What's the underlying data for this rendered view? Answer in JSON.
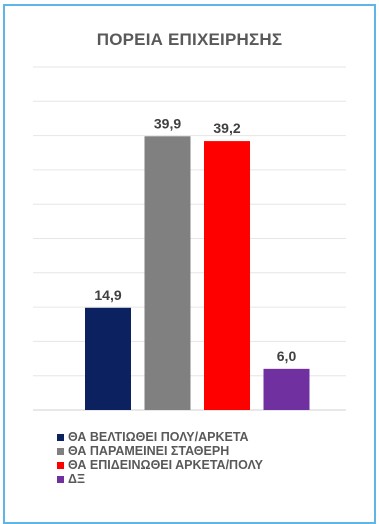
{
  "chart_data": {
    "type": "bar",
    "title": "ΠΟΡΕΙΑ ΕΠΙΧΕΙΡΗΣΗΣ",
    "xlabel": "",
    "ylabel": "",
    "ylim": [
      0,
      50
    ],
    "grid": true,
    "legend_position": "bottom-left",
    "categories": [
      "ΘΑ ΒΕΛΤΙΩΘΕΙ ΠΟΛΥ/ΑΡΚΕΤΑ",
      "ΘΑ ΠΑΡΑΜΕΙΝΕΙ ΣΤΑΘΕΡΗ",
      "ΘΑ ΕΠΙΔΕΙΝΩΘΕΙ ΑΡΚΕΤΑ/ΠΟΛΥ",
      "ΔΞ"
    ],
    "values": [
      14.9,
      39.9,
      39.2,
      6.0
    ],
    "value_labels": [
      "14,9",
      "39,9",
      "39,2",
      "6,0"
    ],
    "colors": [
      "#0b2160",
      "#808080",
      "#ff0000",
      "#7030a0"
    ]
  }
}
